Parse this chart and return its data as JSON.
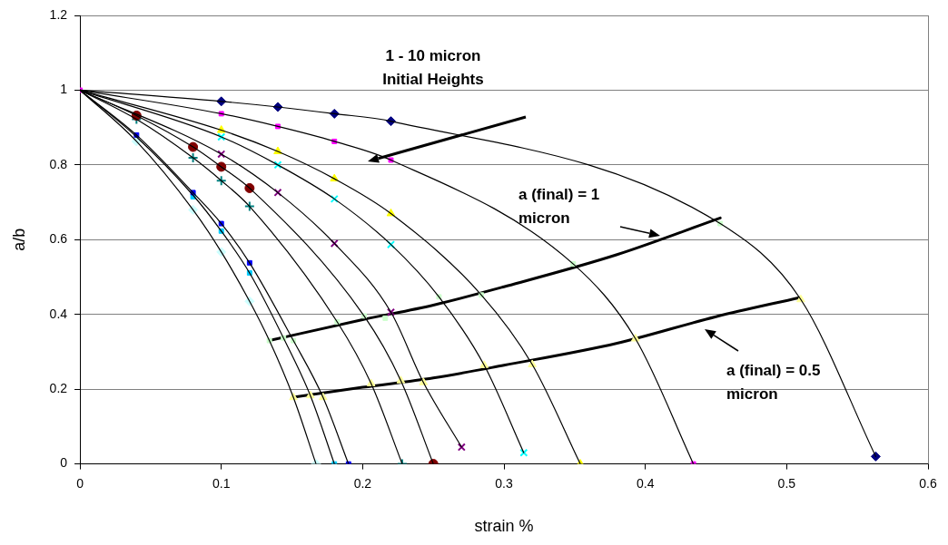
{
  "chart_data": {
    "type": "scatter",
    "xlabel": "strain %",
    "ylabel": "a/b",
    "xlim": [
      0,
      0.6
    ],
    "xticks": [
      0,
      0.1,
      0.2,
      0.3,
      0.4,
      0.5,
      0.6
    ],
    "ylim": [
      0,
      1.2
    ],
    "yticks": [
      0,
      0.2,
      0.4,
      0.6,
      0.8,
      1,
      1.2
    ],
    "grid": "y",
    "legend": false,
    "annotations": [
      "1 - 10 micron\nInitial Heights",
      "a (final) = 1\nmicron",
      "a (final) = 0.5\nmicron"
    ],
    "series": [
      {
        "type": "line",
        "color": "#000000",
        "line_style": "solid",
        "marker": "none",
        "x": [
          0,
          0.1,
          0.14,
          0.18,
          0.22,
          0.453,
          0.51,
          0.563
        ],
        "values": [
          1,
          0.97,
          0.955,
          0.937,
          0.917,
          0.643,
          0.44,
          0.02
        ]
      },
      {
        "type": "line",
        "color": "#000000",
        "line_style": "solid",
        "marker": "none",
        "x": [
          0,
          0.1,
          0.14,
          0.18,
          0.22,
          0.349,
          0.393,
          0.434
        ],
        "values": [
          1,
          0.937,
          0.903,
          0.863,
          0.813,
          0.535,
          0.335,
          0
        ]
      },
      {
        "type": "line",
        "color": "#000000",
        "line_style": "solid",
        "marker": "none",
        "x": [
          0,
          0.1,
          0.14,
          0.18,
          0.22,
          0.284,
          0.32,
          0.354
        ],
        "values": [
          1,
          0.893,
          0.836,
          0.763,
          0.67,
          0.452,
          0.266,
          0
        ]
      },
      {
        "type": "line",
        "color": "#000000",
        "line_style": "solid",
        "marker": "none",
        "x": [
          0,
          0.1,
          0.14,
          0.18,
          0.22,
          0.254,
          0.286,
          0.314
        ],
        "values": [
          1,
          0.875,
          0.8,
          0.709,
          0.587,
          0.447,
          0.264,
          0.03
        ]
      },
      {
        "type": "line",
        "color": "#000000",
        "line_style": "solid",
        "marker": "none",
        "x": [
          0,
          0.1,
          0.14,
          0.18,
          0.22,
          0.243,
          0.27
        ],
        "values": [
          1,
          0.829,
          0.726,
          0.59,
          0.406,
          0.218,
          0.045
        ]
      },
      {
        "type": "line",
        "color": "#000000",
        "line_style": "solid",
        "marker": "none",
        "x": [
          0,
          0.04,
          0.08,
          0.1,
          0.12,
          0.201,
          0.227,
          0.25
        ],
        "values": [
          1,
          0.932,
          0.848,
          0.795,
          0.738,
          0.396,
          0.223,
          0
        ]
      },
      {
        "type": "line",
        "color": "#000000",
        "line_style": "solid",
        "marker": "none",
        "x": [
          0,
          0.04,
          0.08,
          0.1,
          0.12,
          0.182,
          0.206,
          0.228
        ],
        "values": [
          1,
          0.922,
          0.819,
          0.758,
          0.689,
          0.38,
          0.215,
          0
        ]
      },
      {
        "type": "line",
        "color": "#000000",
        "line_style": "solid",
        "marker": "none",
        "x": [
          0,
          0.04,
          0.08,
          0.1,
          0.12,
          0.151,
          0.172,
          0.19
        ],
        "values": [
          1,
          0.88,
          0.726,
          0.643,
          0.538,
          0.33,
          0.178,
          0
        ]
      },
      {
        "type": "line",
        "color": "#000000",
        "line_style": "solid",
        "marker": "none",
        "x": [
          0,
          0.04,
          0.08,
          0.1,
          0.12,
          0.144,
          0.163,
          0.18
        ],
        "values": [
          1,
          0.875,
          0.719,
          0.623,
          0.511,
          0.337,
          0.183,
          0
        ]
      },
      {
        "type": "line",
        "color": "#000000",
        "line_style": "solid",
        "marker": "none",
        "x": [
          0,
          0.04,
          0.08,
          0.1,
          0.12,
          0.134,
          0.151,
          0.167
        ],
        "values": [
          1,
          0.863,
          0.68,
          0.567,
          0.435,
          0.33,
          0.178,
          0
        ]
      },
      {
        "color": "#000080",
        "marker": "diamond",
        "x": [
          0.1,
          0.14,
          0.18,
          0.22,
          0.563
        ],
        "values": [
          0.97,
          0.955,
          0.937,
          0.917,
          0.02
        ]
      },
      {
        "color": "#ff00ff",
        "marker": "square",
        "x": [
          0,
          0.1,
          0.14,
          0.18,
          0.22,
          0.434
        ],
        "values": [
          1,
          0.937,
          0.903,
          0.863,
          0.813,
          0
        ]
      },
      {
        "color": "#ffff00",
        "marker": "triangle",
        "x": [
          0.1,
          0.14,
          0.18,
          0.22,
          0.354
        ],
        "values": [
          0.893,
          0.836,
          0.763,
          0.67,
          0
        ]
      },
      {
        "color": "#00ffff",
        "marker": "x",
        "x": [
          0.1,
          0.14,
          0.18,
          0.22,
          0.314
        ],
        "values": [
          0.875,
          0.8,
          0.709,
          0.587,
          0.03
        ]
      },
      {
        "color": "#800080",
        "marker": "x",
        "x": [
          0.1,
          0.14,
          0.18,
          0.22,
          0.27
        ],
        "values": [
          0.829,
          0.726,
          0.59,
          0.406,
          0.045
        ]
      },
      {
        "color": "#800000",
        "marker": "circle",
        "x": [
          0.04,
          0.08,
          0.1,
          0.12,
          0.25
        ],
        "values": [
          0.932,
          0.848,
          0.795,
          0.738,
          0
        ]
      },
      {
        "color": "#008080",
        "marker": "cross",
        "x": [
          0.04,
          0.08,
          0.1,
          0.12,
          0.228
        ],
        "values": [
          0.922,
          0.819,
          0.758,
          0.689,
          0
        ]
      },
      {
        "color": "#0000ff",
        "marker": "square",
        "x": [
          0.04,
          0.08,
          0.1,
          0.12,
          0.19
        ],
        "values": [
          0.88,
          0.726,
          0.643,
          0.538,
          0
        ]
      },
      {
        "color": "#00ccff",
        "marker": "square",
        "x": [
          0.08,
          0.1,
          0.12,
          0.18
        ],
        "values": [
          0.715,
          0.623,
          0.511,
          0
        ]
      },
      {
        "color": "#ccffff",
        "marker": "diamond",
        "x": [
          0.04,
          0.08,
          0.1,
          0.12,
          0.167
        ],
        "values": [
          0.863,
          0.68,
          0.567,
          0.435,
          0
        ]
      },
      {
        "color": "#ccffcc",
        "marker": "square",
        "x": [
          0.134,
          0.144,
          0.151,
          0.182,
          0.201,
          0.216,
          0.254,
          0.284,
          0.349,
          0.453
        ],
        "values": [
          0.33,
          0.337,
          0.33,
          0.38,
          0.396,
          0.39,
          0.447,
          0.452,
          0.535,
          0.643
        ]
      },
      {
        "color": "#ffff99",
        "marker": "triangle",
        "x": [
          0.151,
          0.163,
          0.172,
          0.206,
          0.227,
          0.243,
          0.286,
          0.32,
          0.393,
          0.51
        ],
        "values": [
          0.178,
          0.183,
          0.178,
          0.215,
          0.223,
          0.218,
          0.264,
          0.266,
          0.335,
          0.44
        ]
      },
      {
        "type": "line",
        "color": "#000000",
        "line_style": "solid",
        "marker": "none",
        "x": [
          0.134,
          0.2,
          0.25,
          0.3,
          0.38,
          0.453
        ],
        "values": [
          0.33,
          0.386,
          0.425,
          0.474,
          0.56,
          0.658
        ]
      },
      {
        "type": "line",
        "color": "#000000",
        "line_style": "solid",
        "marker": "none",
        "x": [
          0.15,
          0.2,
          0.25,
          0.3,
          0.38,
          0.45,
          0.509
        ],
        "values": [
          0.178,
          0.205,
          0.23,
          0.264,
          0.323,
          0.394,
          0.445
        ]
      }
    ]
  }
}
